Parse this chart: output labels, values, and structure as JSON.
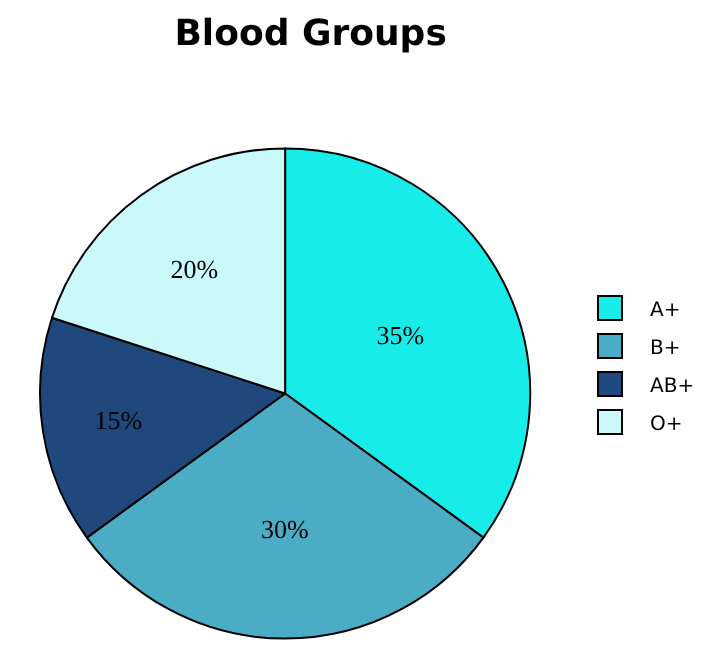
{
  "chart_data": {
    "type": "pie",
    "title": "Blood Groups",
    "categories": [
      "A+",
      "B+",
      "AB+",
      "O+"
    ],
    "values": [
      35,
      30,
      15,
      20
    ],
    "value_labels": [
      "35%",
      "30%",
      "15%",
      "20%"
    ],
    "colors": [
      "#17ece8",
      "#4bacc6",
      "#1f497d",
      "#c9f9f9"
    ],
    "legend": "right"
  }
}
